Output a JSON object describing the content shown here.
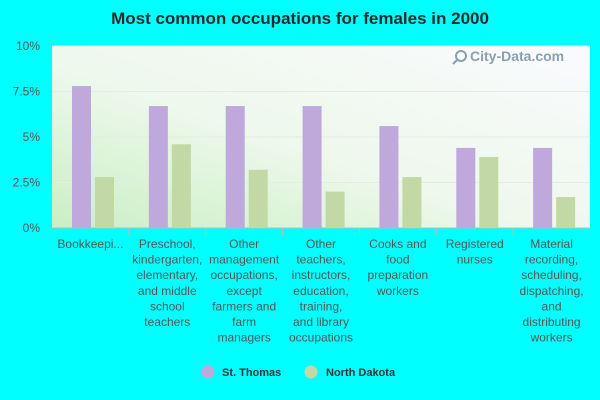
{
  "chart_data": {
    "type": "bar",
    "title": "Most common occupations for females in 2000",
    "categories": [
      "Bookkeepi...",
      "Preschool, kindergarten, elementary, and middle school teachers",
      "Other management occupations, except farmers and farm managers",
      "Other teachers, instructors, education, training, and library occupations",
      "Cooks and food preparation workers",
      "Registered nurses",
      "Material recording, scheduling, dispatching, and distributing workers"
    ],
    "category_lines": [
      [
        "Bookkeepi..."
      ],
      [
        "Preschool,",
        "kindergarten,",
        "elementary,",
        "and middle",
        "school",
        "teachers"
      ],
      [
        "Other",
        "management",
        "occupations,",
        "except",
        "farmers and",
        "farm",
        "managers"
      ],
      [
        "Other",
        "teachers,",
        "instructors,",
        "education,",
        "training,",
        "and library",
        "occupations"
      ],
      [
        "Cooks and",
        "food",
        "preparation",
        "workers"
      ],
      [
        "Registered",
        "nurses"
      ],
      [
        "Material",
        "recording,",
        "scheduling,",
        "dispatching,",
        "and",
        "distributing",
        "workers"
      ]
    ],
    "series": [
      {
        "name": "St. Thomas",
        "color": "#bfa8dc",
        "values": [
          7.8,
          6.7,
          6.7,
          6.7,
          5.6,
          4.4,
          4.4
        ]
      },
      {
        "name": "North Dakota",
        "color": "#c3d9a5",
        "values": [
          2.8,
          4.6,
          3.2,
          2.0,
          2.8,
          3.9,
          1.7
        ]
      }
    ],
    "yticks": [
      "0%",
      "2.5%",
      "5%",
      "7.5%",
      "10%"
    ],
    "ytick_values": [
      0,
      2.5,
      5,
      7.5,
      10
    ],
    "ylim": [
      0,
      10
    ],
    "xlabel": "",
    "ylabel": "",
    "grid": true,
    "legend_position": "bottom-center"
  },
  "watermark": "City-Data.com",
  "colors": {
    "background": "#00ffff",
    "plot_gradient_start": "#ffffff",
    "plot_gradient_end": "#c9eec2"
  }
}
